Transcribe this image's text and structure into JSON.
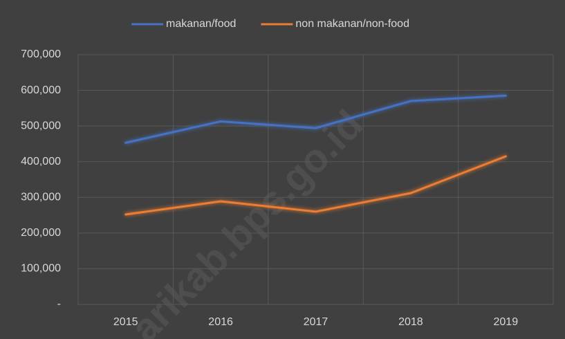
{
  "chart_data": {
    "type": "line",
    "categories": [
      "2015",
      "2016",
      "2017",
      "2018",
      "2019"
    ],
    "series": [
      {
        "name": "makanan/food",
        "color": "#4472c4",
        "values": [
          453000,
          513000,
          494000,
          570000,
          585000
        ]
      },
      {
        "name": "non makanan/non-food",
        "color": "#ed7d31",
        "values": [
          252000,
          289000,
          260000,
          312000,
          415000
        ]
      }
    ],
    "ylim": [
      0,
      700000
    ],
    "yticks": [
      {
        "value": 0,
        "label": "-"
      },
      {
        "value": 100000,
        "label": "100,000"
      },
      {
        "value": 200000,
        "label": "200,000"
      },
      {
        "value": 300000,
        "label": "300,000"
      },
      {
        "value": 400000,
        "label": "400,000"
      },
      {
        "value": 500000,
        "label": "500,000"
      },
      {
        "value": 600000,
        "label": "600,000"
      },
      {
        "value": 700000,
        "label": "700,000"
      }
    ],
    "grid": true,
    "legend": "top",
    "watermark": "arikab.bps.go.id"
  }
}
